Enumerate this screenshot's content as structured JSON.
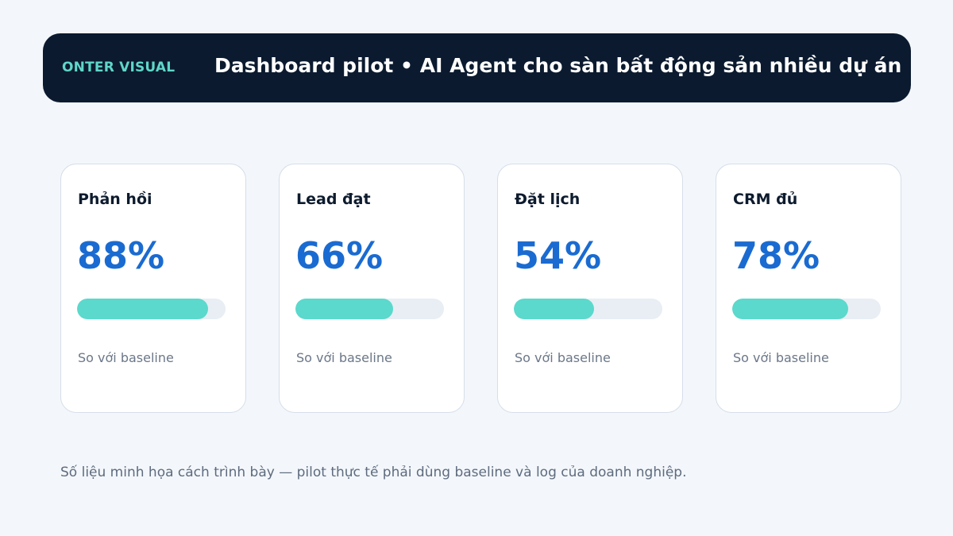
{
  "header": {
    "brand": "ONTER VISUAL",
    "title": "Dashboard pilot • AI Agent cho sàn bất động sản nhiều dự án"
  },
  "colors": {
    "header_bg": "#0b1a2f",
    "brand": "#5fd6c9",
    "value": "#1a6bd1",
    "bar_fill": "#5ad9cc",
    "bar_track": "#e8eef4"
  },
  "cards": [
    {
      "label": "Phản hồi",
      "value": "88%",
      "progress": 0.88,
      "note": "So với baseline"
    },
    {
      "label": "Lead đạt",
      "value": "66%",
      "progress": 0.66,
      "note": "So với baseline"
    },
    {
      "label": "Đặt lịch",
      "value": "54%",
      "progress": 0.54,
      "note": "So với baseline"
    },
    {
      "label": "CRM đủ",
      "value": "78%",
      "progress": 0.78,
      "note": "So với baseline"
    }
  ],
  "footnote": "Số liệu minh họa cách trình bày — pilot thực tế phải dùng baseline và log của doanh nghiệp."
}
